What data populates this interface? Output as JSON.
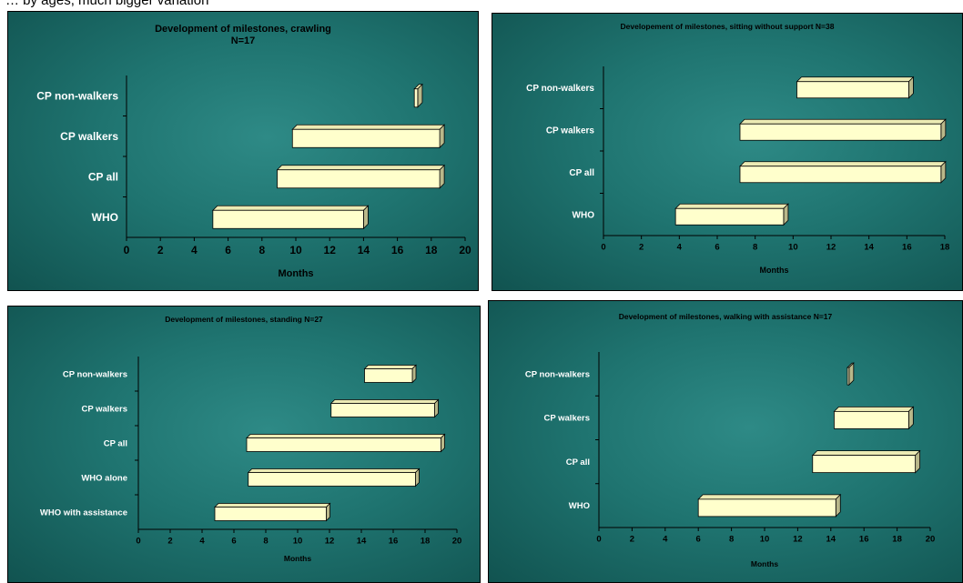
{
  "caption": "… by ages, much bigger variation",
  "chart_data": [
    {
      "type": "bar",
      "orientation": "horizontal",
      "range_bars": true,
      "title": "Development of milestones, crawling",
      "subtitle": "N=17",
      "xlabel": "Months",
      "categories": [
        "CP non-walkers",
        "CP walkers",
        "CP all",
        "WHO"
      ],
      "ranges": [
        [
          17.0,
          17.2
        ],
        [
          9.8,
          18.5
        ],
        [
          8.9,
          18.5
        ],
        [
          5.1,
          14.0
        ]
      ],
      "xlim": [
        0,
        20
      ],
      "xticks": [
        "0",
        "2",
        "4",
        "6",
        "8",
        "10",
        "12",
        "14",
        "16",
        "18",
        "20"
      ],
      "bar_color": "#ffffcc",
      "panel_color": "#1f7470"
    },
    {
      "type": "bar",
      "orientation": "horizontal",
      "range_bars": true,
      "title": "Developement of milestones, sitting without support  N=38",
      "xlabel": "Months",
      "categories": [
        "CP non-walkers",
        "CP walkers",
        "CP all",
        "WHO"
      ],
      "ranges": [
        [
          10.2,
          16.1
        ],
        [
          7.2,
          17.8
        ],
        [
          7.2,
          17.8
        ],
        [
          3.8,
          9.5
        ]
      ],
      "xlim": [
        0,
        18
      ],
      "xticks": [
        "0",
        "2",
        "4",
        "6",
        "8",
        "10",
        "12",
        "14",
        "16",
        "18"
      ],
      "bar_color": "#ffffcc",
      "panel_color": "#1f7470"
    },
    {
      "type": "bar",
      "orientation": "horizontal",
      "range_bars": true,
      "title": "Development of milestones, standing  N=27",
      "xlabel": "Months",
      "categories": [
        "CP non-walkers",
        "CP walkers",
        "CP all",
        "WHO alone",
        "WHO with assistance"
      ],
      "ranges": [
        [
          14.2,
          17.2
        ],
        [
          12.1,
          18.6
        ],
        [
          6.8,
          19.0
        ],
        [
          6.9,
          17.4
        ],
        [
          4.8,
          11.8
        ]
      ],
      "xlim": [
        0,
        20
      ],
      "xticks": [
        "0",
        "2",
        "4",
        "6",
        "8",
        "10",
        "12",
        "14",
        "16",
        "18",
        "20"
      ],
      "bar_color": "#ffffcc",
      "panel_color": "#1f7470"
    },
    {
      "type": "bar",
      "orientation": "horizontal",
      "range_bars": true,
      "title": "Development of milestones, walking with assistance  N=17",
      "xlabel": "Months",
      "categories": [
        "CP non-walkers",
        "CP walkers",
        "CP all",
        "WHO"
      ],
      "ranges": [
        [
          15.0,
          15.1
        ],
        [
          14.2,
          18.7
        ],
        [
          12.9,
          19.1
        ],
        [
          6.0,
          14.3
        ]
      ],
      "xlim": [
        0,
        20
      ],
      "xticks": [
        "0",
        "2",
        "4",
        "6",
        "8",
        "10",
        "12",
        "14",
        "16",
        "18",
        "20"
      ],
      "bar_color": "#ffffcc",
      "panel_color": "#1f7470"
    }
  ]
}
